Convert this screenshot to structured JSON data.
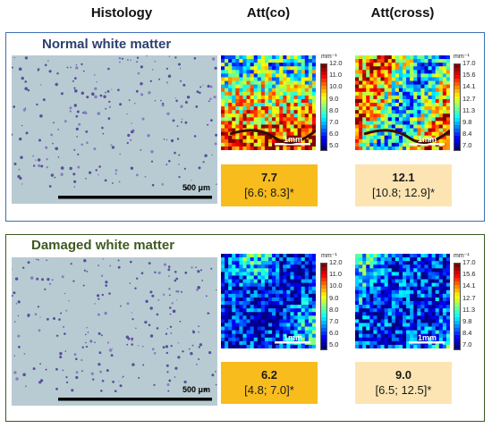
{
  "headers": {
    "histology": "Histology",
    "att_co": "Att(co)",
    "att_cross": "Att(cross)"
  },
  "panels": [
    {
      "title": "Normal white matter",
      "border_color": "#3f6fb3",
      "histology_scale": "500 μm",
      "att_co": {
        "unit": "mm⁻¹",
        "ticks": [
          "12.0",
          "11.0",
          "10.0",
          "9.0",
          "8.0",
          "7.0",
          "6.0",
          "5.0"
        ],
        "scalebar": "1mm",
        "value": "7.7",
        "ci": "[6.6; 8.3]*"
      },
      "att_cross": {
        "unit": "mm⁻¹",
        "ticks": [
          "17.0",
          "15.6",
          "14.1",
          "12.7",
          "11.3",
          "9.8",
          "8.4",
          "7.0"
        ],
        "scalebar": "1mm",
        "value": "12.1",
        "ci": "[10.8; 12.9]*"
      }
    },
    {
      "title": "Damaged white matter",
      "border_color": "#3c5a20",
      "histology_scale": "500 μm",
      "att_co": {
        "unit": "mm⁻¹",
        "ticks": [
          "12.0",
          "11.0",
          "10.0",
          "9.0",
          "8.0",
          "7.0",
          "6.0",
          "5.0"
        ],
        "scalebar": "1mm",
        "value": "6.2",
        "ci": "[4.8; 7.0]*"
      },
      "att_cross": {
        "unit": "mm⁻¹",
        "ticks": [
          "17.0",
          "15.6",
          "14.1",
          "12.7",
          "11.3",
          "9.8",
          "8.4",
          "7.0"
        ],
        "scalebar": "1mm",
        "value": "9.0",
        "ci": "[6.5; 12.5]*"
      }
    }
  ],
  "colors": {
    "co_box": "#f8bc1d",
    "cross_box": "#fde5b3",
    "histology_bg": "#b8cbd3"
  }
}
